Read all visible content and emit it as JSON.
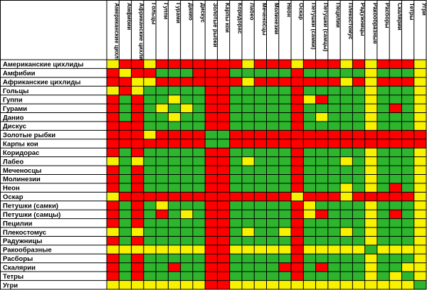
{
  "chart_data": {
    "type": "heatmap",
    "title": "",
    "legend": "none",
    "colors": {
      "2": "#2db62d",
      "1": "#f8f200",
      "0": "#ff0000"
    },
    "rows": [
      "Американские цихлиды",
      "Амфибии",
      "Африканские цихлиды",
      "Гольцы",
      "Гуппи",
      "Гурами",
      "Данио",
      "Дискус",
      "Золотые рыбки",
      "Карпы кои",
      "Коридорас",
      "Лабео",
      "Меченосцы",
      "Молинезии",
      "Неон",
      "Оскар",
      "Петушки (самки)",
      "Петушки (самцы)",
      "Пецилии",
      "Плекостомус",
      "Радужницы",
      "Ракообразные",
      "Расборы",
      "Скалярии",
      "Тетры",
      "Угри"
    ],
    "columns": [
      "Американские цихлиды",
      "Амфибии",
      "Африканские цихлиды",
      "Гольцы",
      "Гуппи",
      "Гурами",
      "Данио",
      "Дискус",
      "Золотые рыбки",
      "Карпы кои",
      "Коридорас",
      "Лабео",
      "Меченосцы",
      "Молинезии",
      "Неон",
      "Оскар",
      "Петушки (самки)",
      "Петушки (самцы)",
      "Пецилии",
      "Плекостомус",
      "Радужницы",
      "Ракообразные",
      "Расборы",
      "Скалярии",
      "Тетры",
      "Угри"
    ],
    "values": [
      [
        1,
        0,
        0,
        1,
        0,
        0,
        0,
        0,
        0,
        0,
        0,
        1,
        0,
        0,
        0,
        1,
        0,
        0,
        0,
        1,
        0,
        1,
        0,
        0,
        0,
        1
      ],
      [
        0,
        1,
        0,
        0,
        2,
        2,
        2,
        0,
        0,
        0,
        2,
        2,
        2,
        2,
        2,
        0,
        2,
        2,
        2,
        2,
        2,
        1,
        2,
        2,
        2,
        1
      ],
      [
        0,
        0,
        1,
        1,
        0,
        0,
        0,
        0,
        0,
        0,
        0,
        1,
        0,
        0,
        0,
        0,
        0,
        0,
        0,
        1,
        0,
        1,
        0,
        0,
        0,
        1
      ],
      [
        1,
        0,
        1,
        2,
        2,
        2,
        2,
        2,
        0,
        0,
        2,
        2,
        2,
        2,
        2,
        0,
        2,
        2,
        2,
        2,
        2,
        1,
        2,
        2,
        2,
        1
      ],
      [
        0,
        2,
        0,
        2,
        2,
        1,
        2,
        2,
        0,
        0,
        2,
        2,
        2,
        2,
        2,
        0,
        1,
        0,
        2,
        2,
        2,
        1,
        2,
        2,
        2,
        1
      ],
      [
        0,
        2,
        0,
        2,
        1,
        2,
        1,
        2,
        0,
        0,
        2,
        2,
        2,
        2,
        2,
        0,
        2,
        2,
        2,
        2,
        2,
        1,
        2,
        0,
        2,
        1
      ],
      [
        0,
        2,
        0,
        2,
        2,
        1,
        2,
        2,
        0,
        0,
        2,
        2,
        2,
        2,
        2,
        0,
        2,
        1,
        2,
        2,
        2,
        1,
        2,
        2,
        2,
        1
      ],
      [
        0,
        0,
        0,
        2,
        2,
        2,
        2,
        2,
        0,
        0,
        2,
        2,
        2,
        2,
        2,
        0,
        2,
        2,
        2,
        2,
        2,
        1,
        2,
        2,
        2,
        1
      ],
      [
        0,
        0,
        0,
        1,
        0,
        0,
        0,
        0,
        2,
        2,
        0,
        0,
        0,
        0,
        0,
        0,
        0,
        0,
        0,
        0,
        0,
        0,
        0,
        0,
        0,
        0
      ],
      [
        0,
        0,
        0,
        0,
        0,
        0,
        0,
        0,
        2,
        2,
        0,
        0,
        0,
        0,
        0,
        0,
        0,
        0,
        0,
        0,
        0,
        0,
        0,
        0,
        0,
        0
      ],
      [
        0,
        2,
        0,
        2,
        2,
        2,
        2,
        2,
        0,
        0,
        2,
        2,
        2,
        2,
        2,
        0,
        2,
        2,
        2,
        2,
        2,
        1,
        2,
        2,
        2,
        1
      ],
      [
        1,
        2,
        1,
        2,
        2,
        2,
        2,
        2,
        0,
        0,
        2,
        1,
        2,
        2,
        2,
        0,
        2,
        2,
        2,
        1,
        2,
        1,
        2,
        2,
        2,
        1
      ],
      [
        0,
        2,
        0,
        2,
        2,
        2,
        2,
        2,
        0,
        0,
        2,
        2,
        2,
        2,
        2,
        0,
        2,
        2,
        2,
        2,
        2,
        1,
        2,
        2,
        2,
        1
      ],
      [
        0,
        2,
        0,
        2,
        2,
        2,
        2,
        2,
        0,
        0,
        2,
        2,
        2,
        2,
        2,
        0,
        2,
        2,
        2,
        2,
        2,
        1,
        2,
        2,
        2,
        1
      ],
      [
        0,
        2,
        0,
        2,
        2,
        2,
        2,
        2,
        0,
        0,
        2,
        2,
        2,
        2,
        2,
        0,
        2,
        2,
        2,
        1,
        2,
        1,
        2,
        0,
        2,
        1
      ],
      [
        1,
        0,
        0,
        0,
        0,
        0,
        0,
        0,
        0,
        0,
        0,
        0,
        0,
        0,
        0,
        1,
        0,
        0,
        0,
        1,
        0,
        0,
        0,
        0,
        0,
        1
      ],
      [
        0,
        2,
        0,
        2,
        1,
        2,
        2,
        2,
        0,
        0,
        2,
        2,
        2,
        2,
        2,
        0,
        1,
        2,
        2,
        2,
        2,
        1,
        2,
        2,
        2,
        1
      ],
      [
        0,
        2,
        0,
        2,
        0,
        2,
        1,
        2,
        0,
        0,
        2,
        2,
        2,
        2,
        2,
        0,
        1,
        0,
        2,
        2,
        2,
        1,
        2,
        0,
        2,
        1
      ],
      [
        0,
        2,
        0,
        2,
        2,
        2,
        2,
        2,
        0,
        0,
        2,
        2,
        2,
        2,
        2,
        0,
        2,
        2,
        2,
        2,
        2,
        1,
        2,
        2,
        2,
        1
      ],
      [
        1,
        2,
        1,
        2,
        2,
        2,
        2,
        2,
        0,
        0,
        2,
        1,
        2,
        2,
        1,
        0,
        2,
        2,
        2,
        1,
        2,
        1,
        2,
        2,
        2,
        1
      ],
      [
        0,
        2,
        0,
        2,
        2,
        2,
        2,
        2,
        0,
        0,
        2,
        2,
        2,
        2,
        2,
        0,
        2,
        2,
        2,
        2,
        2,
        1,
        2,
        2,
        2,
        1
      ],
      [
        1,
        1,
        1,
        1,
        1,
        1,
        1,
        1,
        0,
        0,
        1,
        1,
        1,
        1,
        1,
        0,
        1,
        1,
        1,
        1,
        1,
        2,
        1,
        1,
        1,
        1
      ],
      [
        0,
        2,
        0,
        2,
        2,
        2,
        2,
        2,
        0,
        0,
        2,
        2,
        2,
        2,
        2,
        0,
        2,
        2,
        2,
        2,
        2,
        1,
        2,
        2,
        2,
        1
      ],
      [
        0,
        2,
        0,
        2,
        2,
        0,
        2,
        2,
        0,
        0,
        2,
        2,
        2,
        2,
        0,
        0,
        2,
        0,
        2,
        2,
        2,
        1,
        2,
        2,
        1,
        1
      ],
      [
        0,
        2,
        0,
        2,
        2,
        2,
        2,
        2,
        0,
        0,
        2,
        2,
        2,
        2,
        2,
        0,
        2,
        2,
        2,
        2,
        2,
        1,
        2,
        1,
        2,
        1
      ],
      [
        1,
        1,
        1,
        1,
        1,
        1,
        1,
        1,
        0,
        0,
        1,
        1,
        1,
        1,
        1,
        1,
        1,
        1,
        1,
        1,
        1,
        1,
        1,
        1,
        1,
        2
      ]
    ]
  }
}
